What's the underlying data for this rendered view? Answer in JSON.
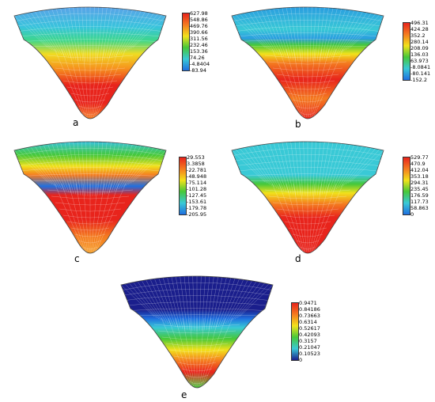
{
  "figure": {
    "panels": [
      {
        "id": "a",
        "label": "a",
        "colorbar": [
          "627.98",
          "548.86",
          "469.76",
          "390.66",
          "311.56",
          "232.46",
          "153.36",
          "74.26",
          "-4.8404",
          "-83.94"
        ],
        "palette": "a"
      },
      {
        "id": "b",
        "label": "b",
        "colorbar": [
          "496.31",
          "424.28",
          "352.2",
          "280.14",
          "208.09",
          "136.03",
          "63.973",
          "-8.0841",
          "-80.141",
          "-152.2"
        ],
        "palette": "b"
      },
      {
        "id": "c",
        "label": "c",
        "colorbar": [
          "29.553",
          "3.3858",
          "-22.781",
          "-48.948",
          "-75.114",
          "-101.28",
          "-127.45",
          "-153.61",
          "-179.78",
          "-205.95"
        ],
        "palette": "c"
      },
      {
        "id": "d",
        "label": "d",
        "colorbar": [
          "529.77",
          "470.9",
          "412.04",
          "353.18",
          "294.31",
          "235.45",
          "176.59",
          "117.73",
          "58.863",
          "0"
        ],
        "palette": "d"
      },
      {
        "id": "e",
        "label": "e",
        "colorbar": [
          "0.9471",
          "0.84186",
          "0.73663",
          "0.6314",
          "0.52617",
          "0.42093",
          "0.3157",
          "0.21047",
          "0.10523",
          "0"
        ],
        "palette": "e"
      }
    ],
    "colors": {
      "red": "#e8241c",
      "orange": "#f47b20",
      "yellow": "#f2e21b",
      "green": "#46c83a",
      "cyan": "#39c9d6",
      "blue": "#1f6fe0",
      "navy": "#1a1e8c"
    }
  }
}
